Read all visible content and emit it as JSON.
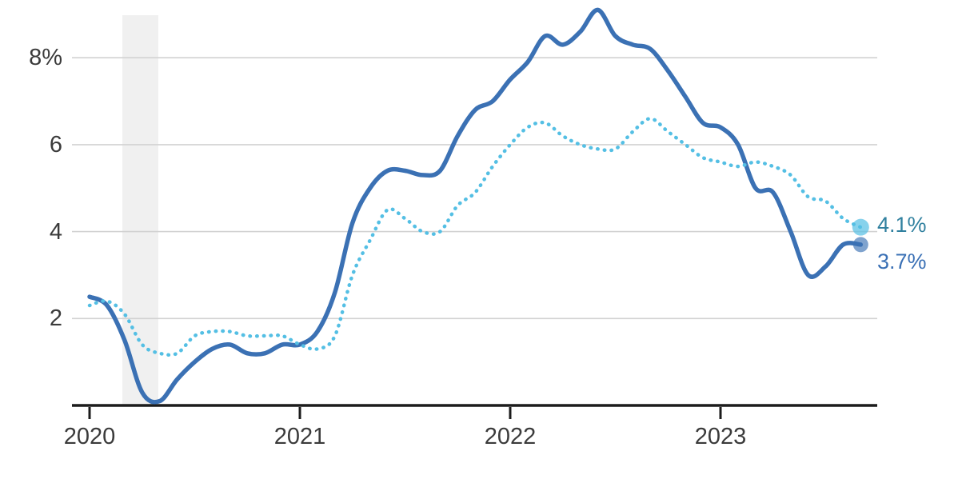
{
  "chart_data": {
    "type": "line",
    "title": "",
    "x_unit": "month",
    "x_start": "2020-01",
    "x_end": "2023-09",
    "x_tick_labels": [
      "2020",
      "2021",
      "2022",
      "2023"
    ],
    "y_ticks": [
      8,
      6,
      4,
      2
    ],
    "y_tick_labels": [
      "8%",
      "6",
      "4",
      "2"
    ],
    "ylim": [
      0,
      10
    ],
    "grid": "horizontal",
    "legend_position": "none",
    "recession_band": {
      "start": "2020-02",
      "end": "2020-04"
    },
    "series": [
      {
        "id": "headline",
        "line_style": "solid",
        "color": "#3b71b4",
        "end_dot_color": "#7d9ccb",
        "end_label": "3.7%",
        "end_label_color": "#3a70b5",
        "end_value": 3.7,
        "values": [
          2.5,
          2.3,
          1.5,
          0.3,
          0.1,
          0.6,
          1.0,
          1.3,
          1.4,
          1.2,
          1.2,
          1.4,
          1.4,
          1.7,
          2.6,
          4.2,
          5.0,
          5.4,
          5.4,
          5.3,
          5.4,
          6.2,
          6.8,
          7.0,
          7.5,
          7.9,
          8.5,
          8.3,
          8.6,
          9.1,
          8.5,
          8.3,
          8.2,
          7.7,
          7.1,
          6.5,
          6.4,
          6.0,
          5.0,
          4.9,
          4.0,
          3.0,
          3.2,
          3.7,
          3.7
        ]
      },
      {
        "id": "core",
        "line_style": "dotted",
        "color": "#54bfe4",
        "end_dot_color": "#87d2ec",
        "end_label": "4.1%",
        "end_label_color": "#30809f",
        "end_value": 4.1,
        "values": [
          2.3,
          2.4,
          2.1,
          1.4,
          1.2,
          1.2,
          1.6,
          1.7,
          1.7,
          1.6,
          1.6,
          1.6,
          1.4,
          1.3,
          1.6,
          3.0,
          3.8,
          4.5,
          4.3,
          4.0,
          4.0,
          4.6,
          4.9,
          5.5,
          6.0,
          6.4,
          6.5,
          6.2,
          6.0,
          5.9,
          5.9,
          6.3,
          6.6,
          6.3,
          6.0,
          5.7,
          5.6,
          5.5,
          5.6,
          5.5,
          5.3,
          4.8,
          4.7,
          4.3,
          4.1
        ]
      }
    ]
  },
  "colors": {
    "background": "#ffffff",
    "gridline": "#d2d2d2",
    "axis": "#1c1c1c",
    "tick_text": "#3b3b3b",
    "recession_band": "#f0f0f0"
  }
}
